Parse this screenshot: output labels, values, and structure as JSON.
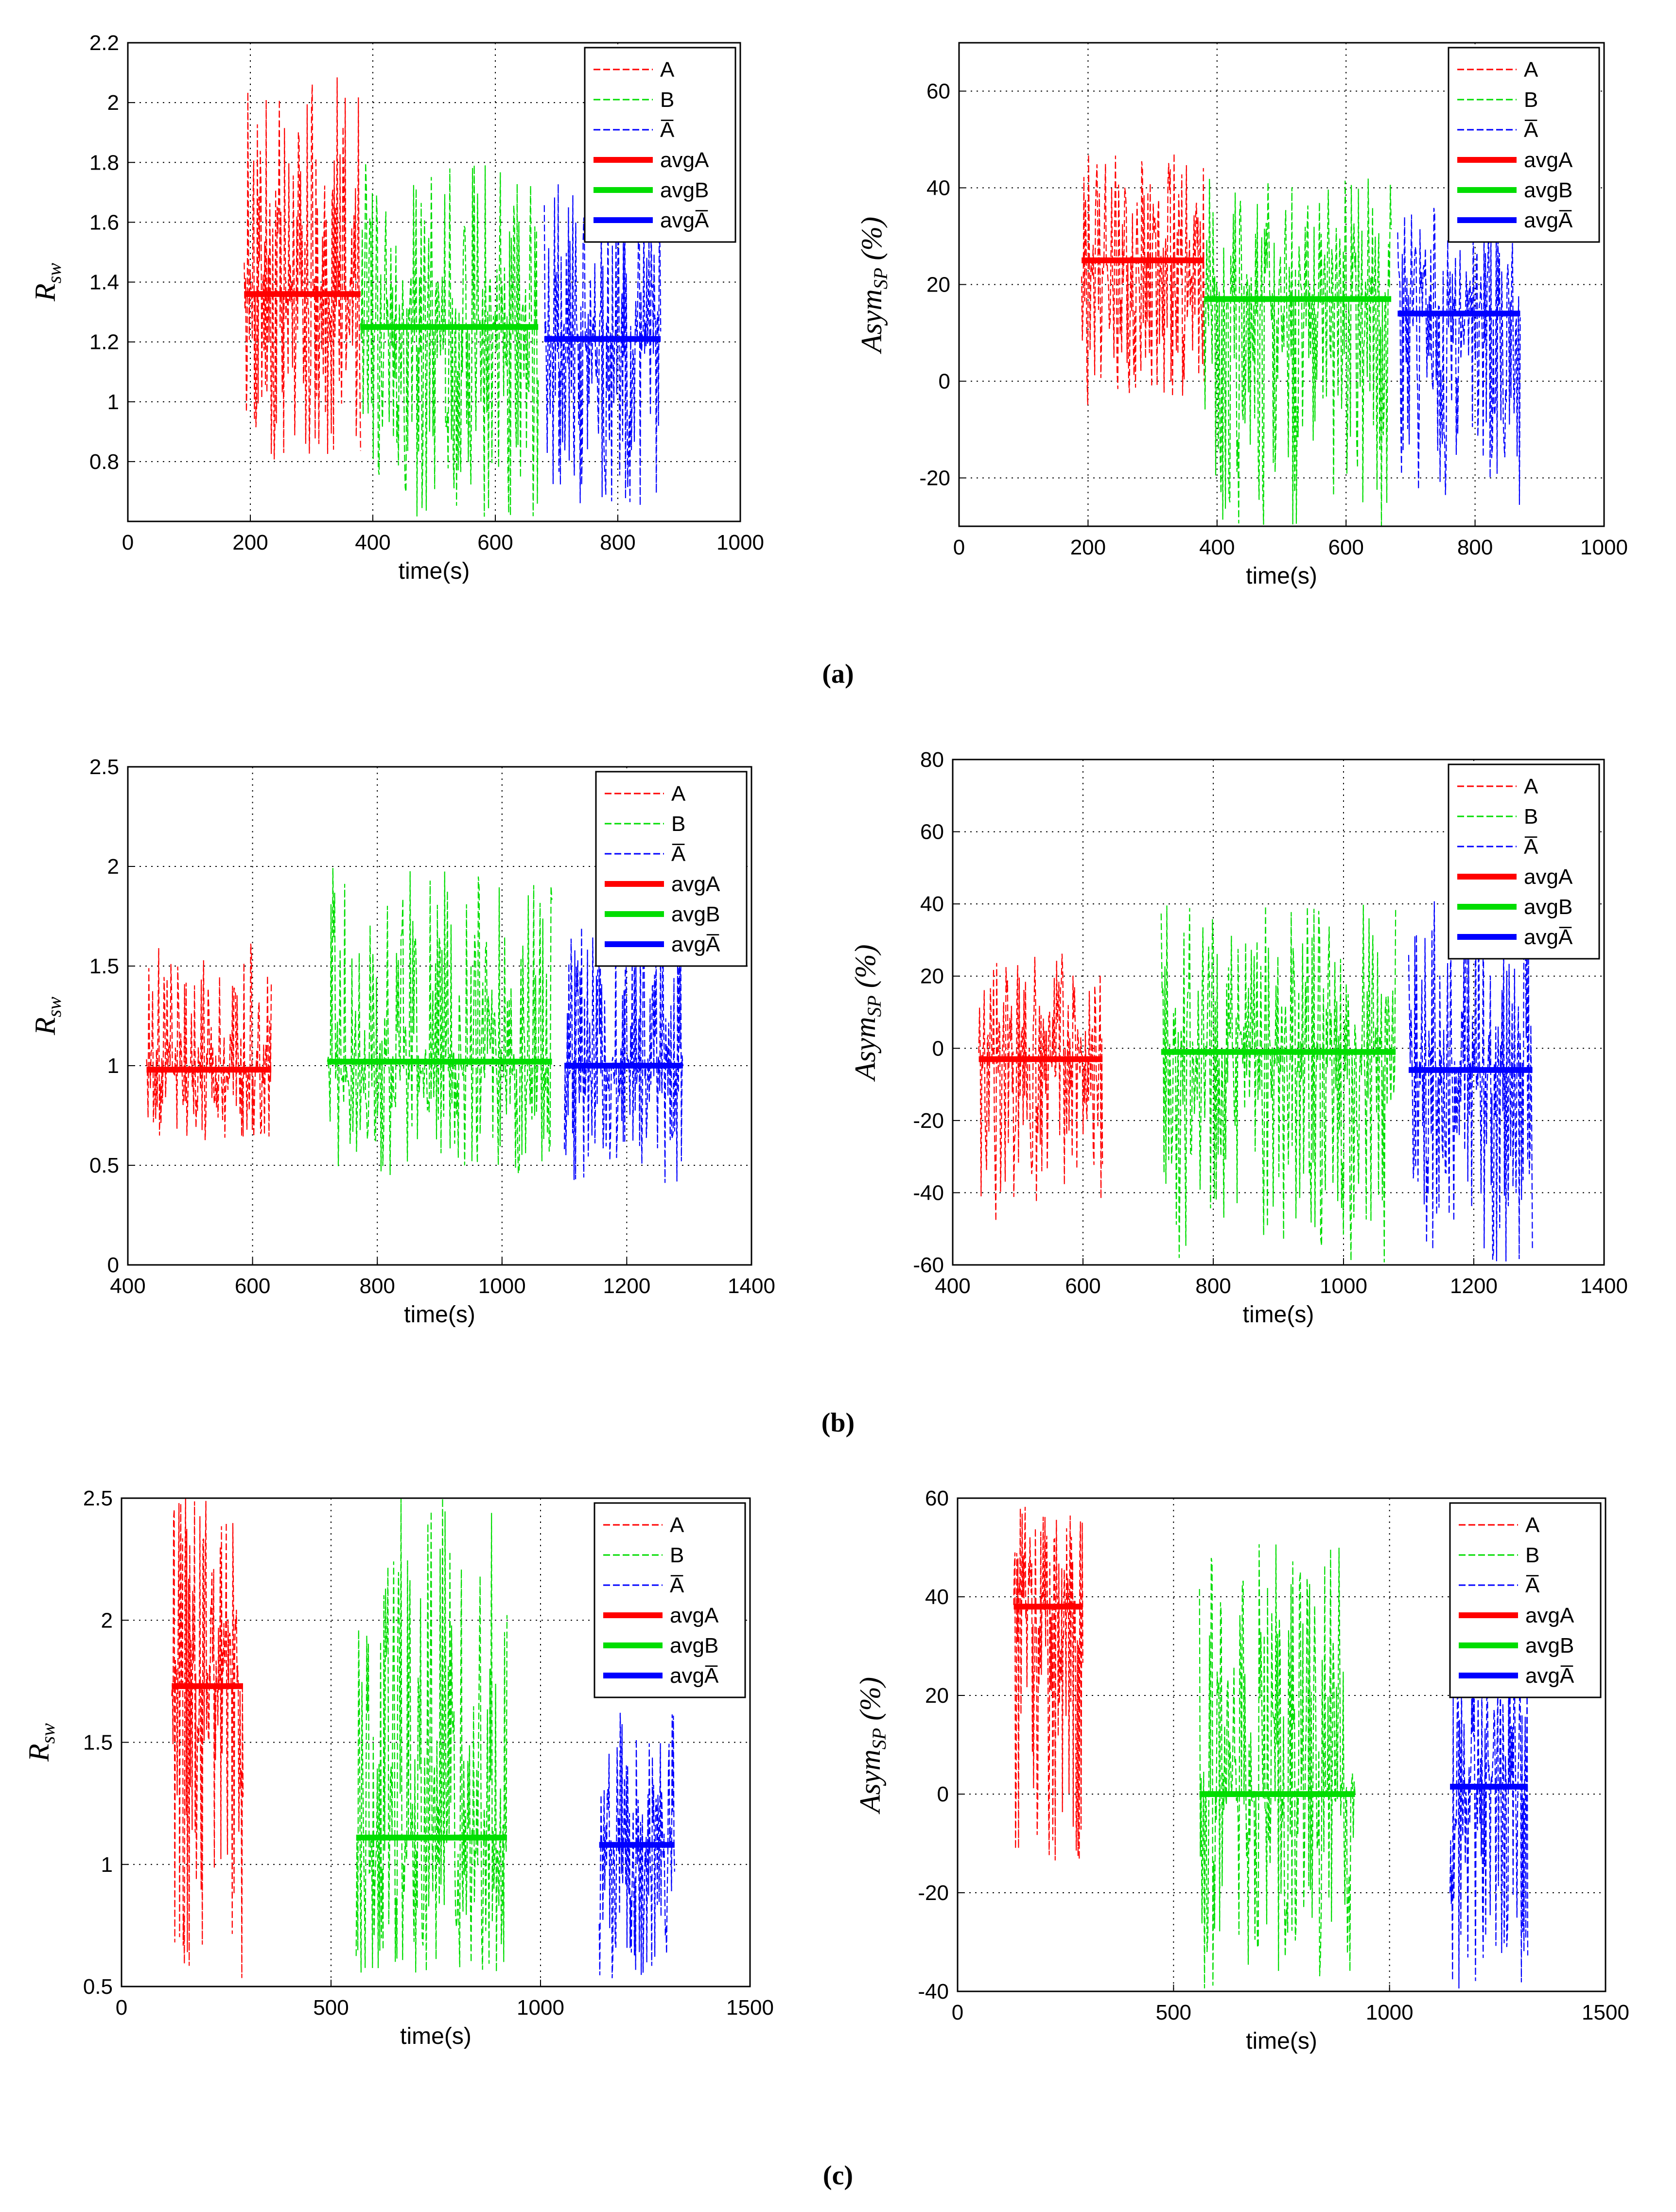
{
  "colors": {
    "A": "#ff0000",
    "B": "#00dd00",
    "A_bar": "#0000ff",
    "grid": "#000000",
    "frame": "#000000"
  },
  "captions": [
    "(a)",
    "(b)",
    "(c)"
  ],
  "chart_data": [
    {
      "type": "line",
      "panel": "(a)",
      "position": "left",
      "xlabel": "time(s)",
      "ylabel_main": "R",
      "ylabel_sub": "sw",
      "xlim": [
        0,
        1000
      ],
      "ylim": [
        0.6,
        2.2
      ],
      "xticks": [
        0,
        200,
        400,
        600,
        800,
        1000
      ],
      "yticks": [
        0.8,
        1,
        1.2,
        1.4,
        1.6,
        1.8,
        2,
        2.2
      ],
      "ytick_labels": [
        "0.8",
        "1",
        "1.2",
        "1.4",
        "1.6",
        "1.8",
        "2",
        "2.2"
      ],
      "legend": [
        "A",
        "B",
        "A̅",
        "avgA",
        "avgB",
        "avgA̅"
      ],
      "series": [
        {
          "name": "A",
          "color_key": "A",
          "x_range": [
            190,
            380
          ],
          "avg": 1.36,
          "lo": 0.8,
          "hi": 2.09,
          "seed": 11
        },
        {
          "name": "B",
          "color_key": "B",
          "x_range": [
            380,
            670
          ],
          "avg": 1.25,
          "lo": 0.6,
          "hi": 1.8,
          "seed": 12
        },
        {
          "name": "A̅",
          "color_key": "A_bar",
          "x_range": [
            680,
            870
          ],
          "avg": 1.21,
          "lo": 0.65,
          "hi": 1.75,
          "seed": 13
        }
      ]
    },
    {
      "type": "line",
      "panel": "(a)",
      "position": "right",
      "xlabel": "time(s)",
      "ylabel_main": "Asym",
      "ylabel_sub": "SP",
      "ylabel_suffix": " (%)",
      "xlim": [
        0,
        1000
      ],
      "ylim": [
        -30,
        70
      ],
      "xticks": [
        0,
        200,
        400,
        600,
        800,
        1000
      ],
      "yticks": [
        -20,
        0,
        20,
        40,
        60
      ],
      "ytick_labels": [
        "-20",
        "0",
        "20",
        "40",
        "60"
      ],
      "legend": [
        "A",
        "B",
        "A̅",
        "avgA",
        "avgB",
        "avgA̅"
      ],
      "series": [
        {
          "name": "A",
          "color_key": "A",
          "x_range": [
            190,
            380
          ],
          "avg": 25,
          "lo": -5,
          "hi": 48,
          "seed": 21
        },
        {
          "name": "B",
          "color_key": "B",
          "x_range": [
            380,
            670
          ],
          "avg": 17,
          "lo": -30,
          "hi": 42,
          "seed": 22
        },
        {
          "name": "A̅",
          "color_key": "A_bar",
          "x_range": [
            680,
            870
          ],
          "avg": 14,
          "lo": -30,
          "hi": 36,
          "seed": 23
        }
      ]
    },
    {
      "type": "line",
      "panel": "(b)",
      "position": "left",
      "xlabel": "time(s)",
      "ylabel_main": "R",
      "ylabel_sub": "sw",
      "xlim": [
        400,
        1400
      ],
      "ylim": [
        0,
        2.5
      ],
      "xticks": [
        400,
        600,
        800,
        1000,
        1200,
        1400
      ],
      "yticks": [
        0,
        0.5,
        1,
        1.5,
        2,
        2.5
      ],
      "ytick_labels": [
        "0",
        "0.5",
        "1",
        "1.5",
        "2",
        "2.5"
      ],
      "legend": [
        "A",
        "B",
        "A̅",
        "avgA",
        "avgB",
        "avgA̅"
      ],
      "series": [
        {
          "name": "A",
          "color_key": "A",
          "x_range": [
            430,
            630
          ],
          "avg": 0.98,
          "lo": 0.62,
          "hi": 1.62,
          "seed": 31
        },
        {
          "name": "B",
          "color_key": "B",
          "x_range": [
            720,
            1080
          ],
          "avg": 1.02,
          "lo": 0.45,
          "hi": 2.0,
          "seed": 32
        },
        {
          "name": "A̅",
          "color_key": "A_bar",
          "x_range": [
            1100,
            1290
          ],
          "avg": 1.0,
          "lo": 0.4,
          "hi": 1.92,
          "seed": 33
        }
      ]
    },
    {
      "type": "line",
      "panel": "(b)",
      "position": "right",
      "xlabel": "time(s)",
      "ylabel_main": "Asym",
      "ylabel_sub": "SP",
      "ylabel_suffix": " (%)",
      "xlim": [
        400,
        1400
      ],
      "ylim": [
        -60,
        80
      ],
      "xticks": [
        400,
        600,
        800,
        1000,
        1200,
        1400
      ],
      "yticks": [
        -60,
        -40,
        -20,
        0,
        20,
        40,
        60,
        80
      ],
      "ytick_labels": [
        "-60",
        "-40",
        "-20",
        "0",
        "20",
        "40",
        "60",
        "80"
      ],
      "legend": [
        "A",
        "B",
        "A̅",
        "avgA",
        "avgB",
        "avgA̅"
      ],
      "series": [
        {
          "name": "A",
          "color_key": "A",
          "x_range": [
            440,
            630
          ],
          "avg": -3,
          "lo": -48,
          "hi": 28,
          "seed": 41
        },
        {
          "name": "B",
          "color_key": "B",
          "x_range": [
            720,
            1080
          ],
          "avg": -1,
          "lo": -60,
          "hi": 40,
          "seed": 42
        },
        {
          "name": "A̅",
          "color_key": "A_bar",
          "x_range": [
            1100,
            1290
          ],
          "avg": -6,
          "lo": -60,
          "hi": 44,
          "seed": 43
        }
      ]
    },
    {
      "type": "line",
      "panel": "(c)",
      "position": "left",
      "xlabel": "time(s)",
      "ylabel_main": "R",
      "ylabel_sub": "sw",
      "xlim": [
        0,
        1500
      ],
      "ylim": [
        0.5,
        2.5
      ],
      "xticks": [
        0,
        500,
        1000,
        1500
      ],
      "yticks": [
        0.5,
        1,
        1.5,
        2,
        2.5
      ],
      "ytick_labels": [
        "0.5",
        "1",
        "1.5",
        "2",
        "2.5"
      ],
      "legend": [
        "A",
        "B",
        "A̅",
        "avgA",
        "avgB",
        "avgA̅"
      ],
      "series": [
        {
          "name": "A",
          "color_key": "A",
          "x_range": [
            120,
            290
          ],
          "avg": 1.73,
          "lo": 0.5,
          "hi": 2.5,
          "seed": 51
        },
        {
          "name": "B",
          "color_key": "B",
          "x_range": [
            560,
            920
          ],
          "avg": 1.11,
          "lo": 0.55,
          "hi": 2.5,
          "seed": 52
        },
        {
          "name": "A̅",
          "color_key": "A_bar",
          "x_range": [
            1140,
            1320
          ],
          "avg": 1.08,
          "lo": 0.52,
          "hi": 1.63,
          "seed": 53
        }
      ]
    },
    {
      "type": "line",
      "panel": "(c)",
      "position": "right",
      "xlabel": "time(s)",
      "ylabel_main": "Asym",
      "ylabel_sub": "SP",
      "ylabel_suffix": " (%)",
      "xlim": [
        0,
        1500
      ],
      "ylim": [
        -40,
        60
      ],
      "xticks": [
        0,
        500,
        1000,
        1500
      ],
      "yticks": [
        -40,
        -20,
        0,
        20,
        40,
        60
      ],
      "ytick_labels": [
        "-40",
        "-20",
        "0",
        "20",
        "40",
        "60"
      ],
      "legend": [
        "A",
        "B",
        "A̅",
        "avgA",
        "avgB",
        "avgA̅"
      ],
      "series": [
        {
          "name": "A",
          "color_key": "A",
          "x_range": [
            130,
            290
          ],
          "avg": 38,
          "lo": -14,
          "hi": 60,
          "seed": 61
        },
        {
          "name": "B",
          "color_key": "B",
          "x_range": [
            560,
            920
          ],
          "avg": 0,
          "lo": -40,
          "hi": 52,
          "seed": 62
        },
        {
          "name": "A̅",
          "color_key": "A_bar",
          "x_range": [
            1140,
            1320
          ],
          "avg": 1.5,
          "lo": -40,
          "hi": 28,
          "seed": 63
        }
      ]
    }
  ]
}
